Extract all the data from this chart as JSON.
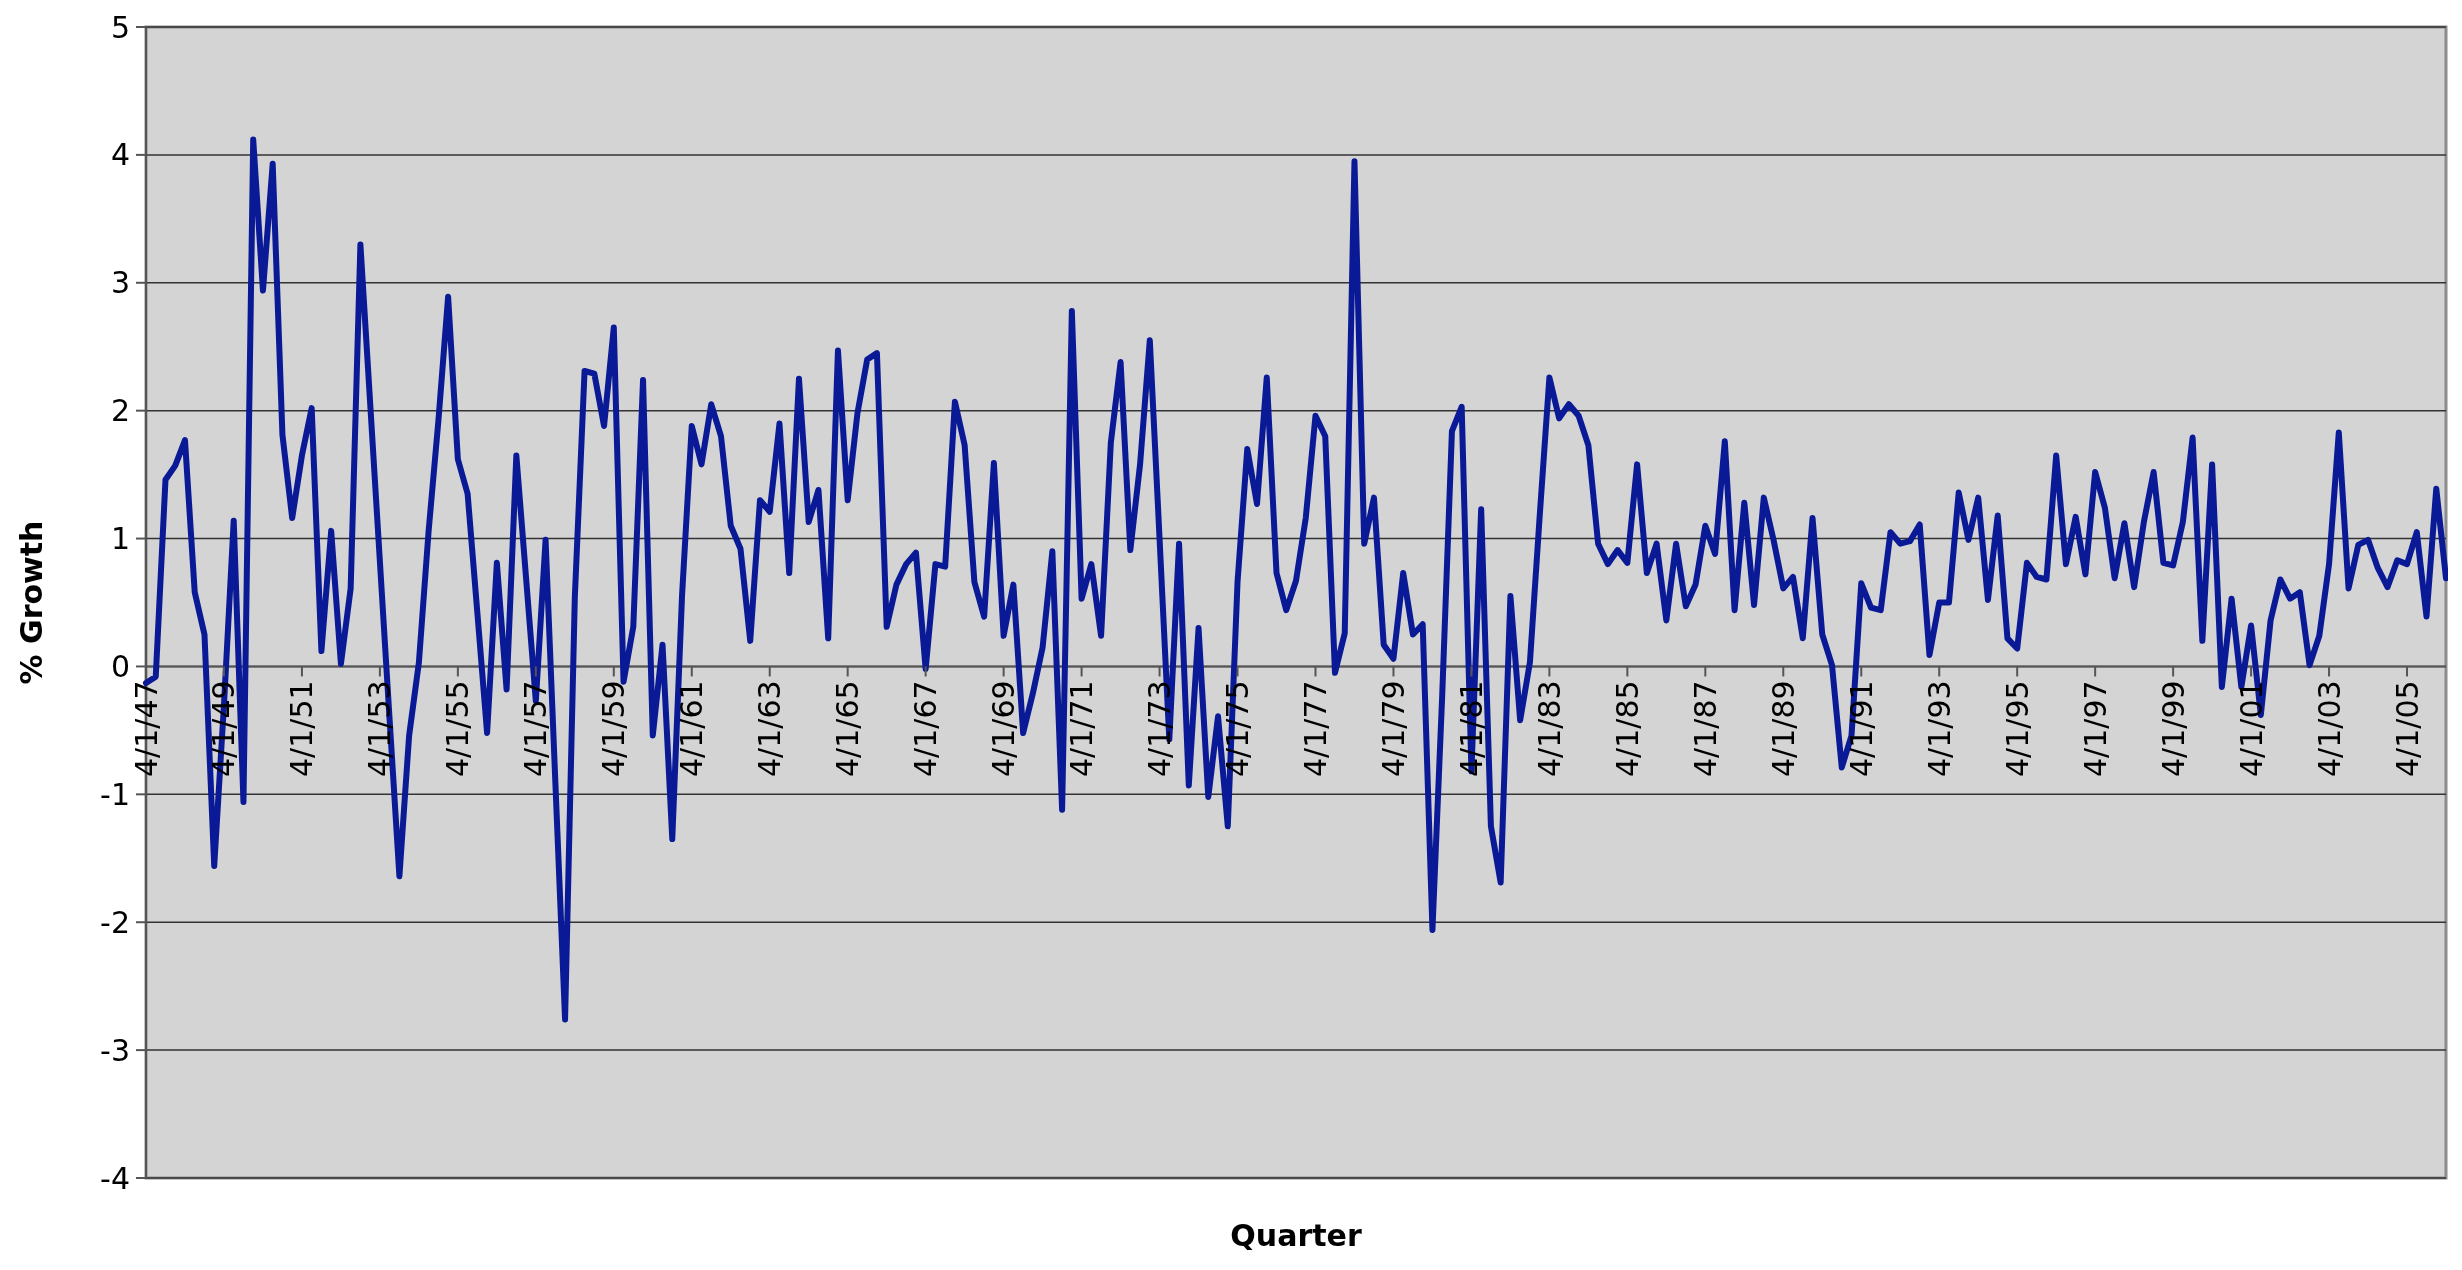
{
  "chart_data": {
    "type": "line",
    "xlabel": "Quarter",
    "ylabel": "% Growth",
    "ylim": [
      -4,
      5
    ],
    "yticks": [
      -4,
      -3,
      -2,
      -1,
      0,
      1,
      2,
      3,
      4,
      5
    ],
    "grid": "y",
    "categories": [
      "4/1/47",
      null,
      null,
      null,
      null,
      null,
      null,
      null,
      "4/1/49",
      null,
      null,
      null,
      null,
      null,
      null,
      null,
      "4/1/51",
      null,
      null,
      null,
      null,
      null,
      null,
      null,
      "4/1/53",
      null,
      null,
      null,
      null,
      null,
      null,
      null,
      "4/1/55",
      null,
      null,
      null,
      null,
      null,
      null,
      null,
      "4/1/57",
      null,
      null,
      null,
      null,
      null,
      null,
      null,
      "4/1/59",
      null,
      null,
      null,
      null,
      null,
      null,
      null,
      "4/1/61",
      null,
      null,
      null,
      null,
      null,
      null,
      null,
      "4/1/63",
      null,
      null,
      null,
      null,
      null,
      null,
      null,
      "4/1/65",
      null,
      null,
      null,
      null,
      null,
      null,
      null,
      "4/1/67",
      null,
      null,
      null,
      null,
      null,
      null,
      null,
      "4/1/69",
      null,
      null,
      null,
      null,
      null,
      null,
      null,
      "4/1/71",
      null,
      null,
      null,
      null,
      null,
      null,
      null,
      "4/1/73",
      null,
      null,
      null,
      null,
      null,
      null,
      null,
      "4/1/75",
      null,
      null,
      null,
      null,
      null,
      null,
      null,
      "4/1/77",
      null,
      null,
      null,
      null,
      null,
      null,
      null,
      "4/1/79",
      null,
      null,
      null,
      null,
      null,
      null,
      null,
      "4/1/81",
      null,
      null,
      null,
      null,
      null,
      null,
      null,
      "4/1/83",
      null,
      null,
      null,
      null,
      null,
      null,
      null,
      "4/1/85",
      null,
      null,
      null,
      null,
      null,
      null,
      null,
      "4/1/87",
      null,
      null,
      null,
      null,
      null,
      null,
      null,
      "4/1/89",
      null,
      null,
      null,
      null,
      null,
      null,
      null,
      "4/1/91",
      null,
      null,
      null,
      null,
      null,
      null,
      null,
      "4/1/93",
      null,
      null,
      null,
      null,
      null,
      null,
      null,
      "4/1/95",
      null,
      null,
      null,
      null,
      null,
      null,
      null,
      "4/1/97",
      null,
      null,
      null,
      null,
      null,
      null,
      null,
      "4/1/99",
      null,
      null,
      null,
      null,
      null,
      null,
      null,
      "4/1/01",
      null,
      null,
      null,
      null,
      null,
      null,
      null,
      "4/1/03",
      null,
      null,
      null,
      null,
      null,
      null,
      null,
      "4/1/05",
      null,
      null,
      null,
      null
    ],
    "series": [
      {
        "color": "#0a1a96",
        "values": [
          -0.13,
          -0.08,
          1.46,
          1.57,
          1.77,
          0.58,
          0.25,
          -1.56,
          -0.3,
          1.14,
          -1.06,
          4.12,
          2.94,
          3.93,
          1.81,
          1.16,
          1.65,
          2.02,
          0.12,
          1.06,
          0.02,
          0.61,
          3.3,
          2.06,
          0.82,
          -0.42,
          -1.64,
          -0.54,
          0.03,
          1.06,
          1.92,
          2.89,
          1.62,
          1.35,
          0.42,
          -0.52,
          0.81,
          -0.18,
          1.65,
          0.69,
          -0.27,
          0.99,
          -0.9,
          -2.76,
          0.54,
          2.31,
          2.29,
          1.88,
          2.65,
          -0.12,
          0.31,
          2.24,
          -0.54,
          0.17,
          -1.35,
          0.55,
          1.88,
          1.58,
          2.05,
          1.8,
          1.1,
          0.92,
          0.2,
          1.3,
          1.21,
          1.9,
          0.73,
          2.25,
          1.13,
          1.38,
          0.22,
          2.47,
          1.3,
          1.98,
          2.4,
          2.45,
          0.31,
          0.64,
          0.8,
          0.89,
          -0.02,
          0.8,
          0.78,
          2.07,
          1.73,
          0.66,
          0.39,
          1.59,
          0.24,
          0.64,
          -0.52,
          -0.21,
          0.15,
          0.9,
          -1.12,
          2.78,
          0.53,
          0.8,
          0.24,
          1.75,
          2.38,
          0.91,
          1.58,
          2.55,
          1.0,
          -0.57,
          0.96,
          -0.93,
          0.3,
          -1.02,
          -0.39,
          -1.25,
          0.66,
          1.7,
          1.27,
          2.26,
          0.73,
          0.44,
          0.67,
          1.16,
          1.96,
          1.8,
          -0.05,
          0.26,
          3.95,
          0.96,
          1.32,
          0.17,
          0.06,
          0.73,
          0.25,
          0.33,
          -2.06,
          -0.23,
          1.84,
          2.03,
          -0.82,
          1.23,
          -1.25,
          -1.69,
          0.55,
          -0.42,
          0.03,
          1.17,
          2.26,
          1.94,
          2.05,
          1.96,
          1.73,
          0.96,
          0.8,
          0.91,
          0.81,
          1.58,
          0.73,
          0.96,
          0.36,
          0.96,
          0.47,
          0.64,
          1.1,
          0.88,
          1.76,
          0.44,
          1.28,
          0.48,
          1.32,
          0.99,
          0.61,
          0.7,
          0.22,
          1.16,
          0.25,
          0.01,
          -0.79,
          -0.54,
          0.65,
          0.46,
          0.44,
          1.05,
          0.96,
          0.98,
          1.11,
          0.09,
          0.5,
          0.5,
          1.36,
          0.99,
          1.32,
          0.52,
          1.18,
          0.22,
          0.14,
          0.81,
          0.7,
          0.68,
          1.65,
          0.8,
          1.17,
          0.72,
          1.52,
          1.24,
          0.69,
          1.12,
          0.62,
          1.13,
          1.52,
          0.81,
          0.79,
          1.13,
          1.79,
          0.2,
          1.58,
          -0.16,
          0.53,
          -0.16,
          0.32,
          -0.38,
          0.36,
          0.68,
          0.53,
          0.58,
          0.01,
          0.24,
          0.8,
          1.83,
          0.61,
          0.95,
          0.99,
          0.77,
          0.62,
          0.83,
          0.8,
          1.05,
          0.39,
          1.39,
          0.69
        ]
      }
    ]
  }
}
